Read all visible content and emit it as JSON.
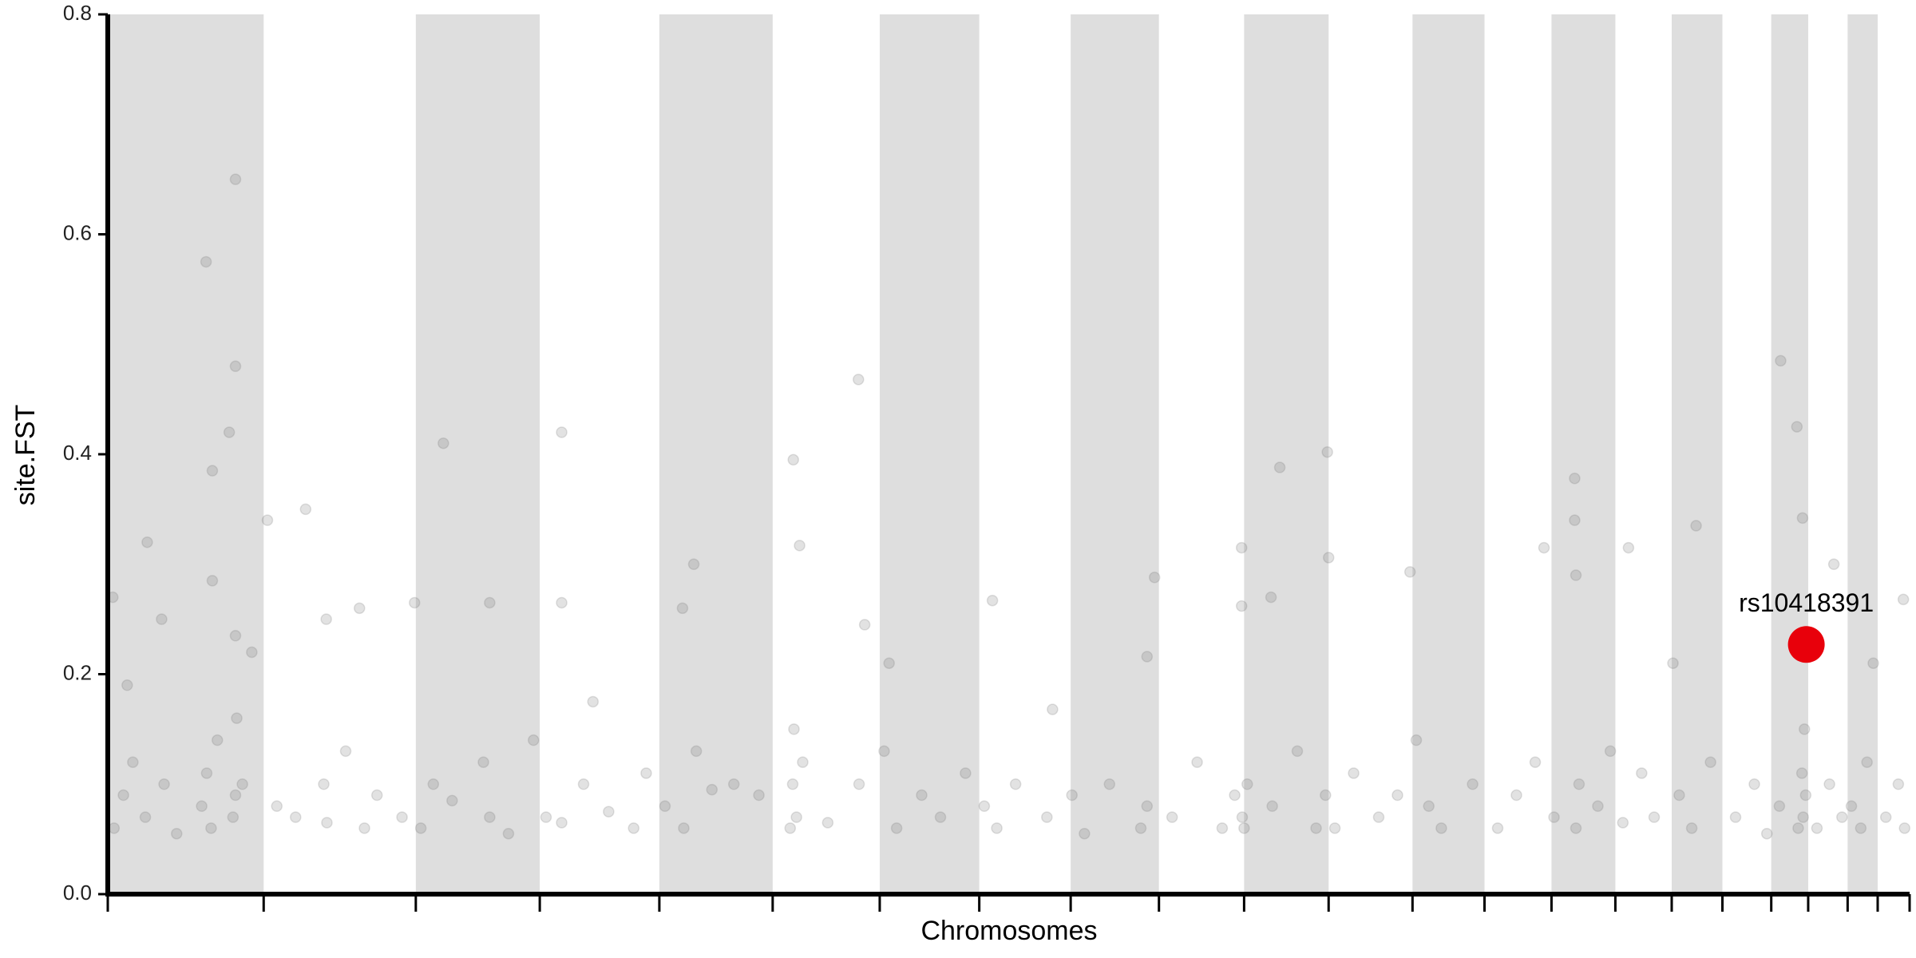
{
  "chart_data": {
    "type": "scatter",
    "xlabel": "Chromosomes",
    "ylabel": "site.FST",
    "xlim": [
      0,
      2878
    ],
    "xticks": [
      0,
      249,
      492,
      690,
      881,
      1062,
      1233,
      1392,
      1538,
      1679,
      1815,
      1950,
      2084,
      2199,
      2306,
      2408,
      2498,
      2579,
      2657,
      2716,
      2779,
      2827,
      2878
    ],
    "ylim": [
      0,
      0.8
    ],
    "yticks": [
      {
        "value": 0,
        "label": "0.0"
      },
      0.2,
      0.4,
      0.6,
      0.8
    ],
    "band_color": "#dedede",
    "color": "#707070",
    "opacity": 0.2,
    "x": [
      8,
      31,
      63,
      86,
      157,
      167,
      167,
      194,
      204,
      204,
      204,
      230,
      255,
      316,
      349,
      402,
      490,
      536,
      610,
      725,
      725,
      775,
      936,
      918,
      1095,
      1105,
      1199,
      1209,
      1248,
      1413,
      1509,
      1672,
      1660,
      1811,
      1811,
      1872,
      1948,
      1950,
      1858,
      2080,
      2294,
      2343,
      2343,
      2345,
      2429,
      2537,
      2672,
      2698,
      2707,
      2757,
      2868,
      2500,
      10,
      25,
      40,
      60,
      90,
      110,
      150,
      158,
      165,
      175,
      200,
      204,
      206,
      215,
      270,
      300,
      345,
      350,
      380,
      410,
      430,
      470,
      500,
      520,
      550,
      600,
      610,
      640,
      680,
      700,
      725,
      760,
      800,
      840,
      860,
      890,
      920,
      940,
      965,
      1000,
      1040,
      1090,
      1094,
      1096,
      1100,
      1110,
      1150,
      1200,
      1240,
      1260,
      1300,
      1330,
      1370,
      1400,
      1420,
      1450,
      1500,
      1540,
      1560,
      1600,
      1650,
      1660,
      1700,
      1740,
      1780,
      1800,
      1812,
      1815,
      1820,
      1860,
      1900,
      1930,
      1945,
      1960,
      1990,
      2030,
      2060,
      2090,
      2110,
      2130,
      2180,
      2220,
      2250,
      2280,
      2310,
      2345,
      2350,
      2380,
      2400,
      2420,
      2450,
      2470,
      2510,
      2530,
      2560,
      2600,
      2630,
      2650,
      2670,
      2700,
      2706,
      2708,
      2710,
      2712,
      2730,
      2750,
      2770,
      2785,
      2800,
      2810,
      2820,
      2840,
      2860,
      2870
    ],
    "values": [
      0.27,
      0.19,
      0.32,
      0.25,
      0.575,
      0.385,
      0.285,
      0.42,
      0.65,
      0.48,
      0.235,
      0.22,
      0.34,
      0.35,
      0.25,
      0.26,
      0.265,
      0.41,
      0.265,
      0.42,
      0.265,
      0.175,
      0.3,
      0.26,
      0.395,
      0.317,
      0.468,
      0.245,
      0.21,
      0.267,
      0.168,
      0.288,
      0.216,
      0.315,
      0.262,
      0.388,
      0.402,
      0.306,
      0.27,
      0.293,
      0.315,
      0.378,
      0.34,
      0.29,
      0.315,
      0.335,
      0.485,
      0.425,
      0.342,
      0.3,
      0.268,
      0.21,
      0.06,
      0.09,
      0.12,
      0.07,
      0.1,
      0.055,
      0.08,
      0.11,
      0.06,
      0.14,
      0.07,
      0.09,
      0.16,
      0.1,
      0.08,
      0.07,
      0.1,
      0.065,
      0.13,
      0.06,
      0.09,
      0.07,
      0.06,
      0.1,
      0.085,
      0.12,
      0.07,
      0.055,
      0.14,
      0.07,
      0.065,
      0.1,
      0.075,
      0.06,
      0.11,
      0.08,
      0.06,
      0.13,
      0.095,
      0.1,
      0.09,
      0.06,
      0.1,
      0.15,
      0.07,
      0.12,
      0.065,
      0.1,
      0.13,
      0.06,
      0.09,
      0.07,
      0.11,
      0.08,
      0.06,
      0.1,
      0.07,
      0.09,
      0.055,
      0.1,
      0.06,
      0.08,
      0.07,
      0.12,
      0.06,
      0.09,
      0.07,
      0.06,
      0.1,
      0.08,
      0.13,
      0.06,
      0.09,
      0.06,
      0.11,
      0.07,
      0.09,
      0.14,
      0.08,
      0.06,
      0.1,
      0.06,
      0.09,
      0.12,
      0.07,
      0.06,
      0.1,
      0.08,
      0.13,
      0.065,
      0.11,
      0.07,
      0.09,
      0.06,
      0.12,
      0.07,
      0.1,
      0.055,
      0.08,
      0.06,
      0.11,
      0.07,
      0.15,
      0.09,
      0.06,
      0.1,
      0.07,
      0.08,
      0.06,
      0.12,
      0.21,
      0.07,
      0.1,
      0.06
    ],
    "highlight": {
      "label": "rs10418391",
      "x": 2713,
      "value": 0.227,
      "color": "#e8000b"
    }
  }
}
